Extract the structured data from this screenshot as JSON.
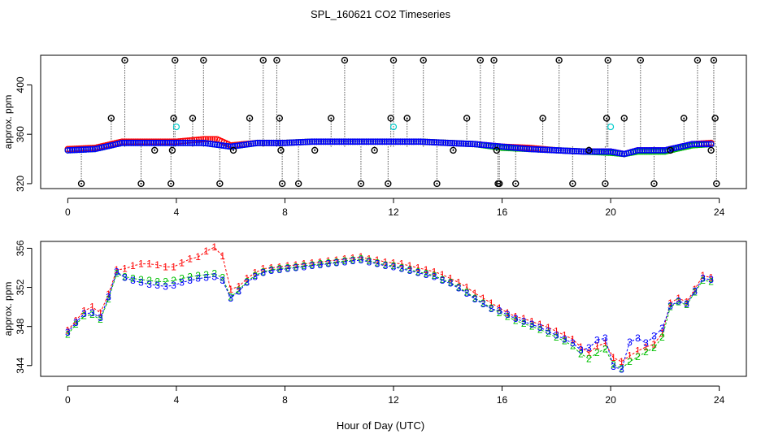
{
  "title": "SPL_160621  CO2 Timeseries",
  "xlabel": "Hour of Day (UTC)",
  "colors": {
    "ref": "#000000",
    "series1": "#ff0000",
    "series2": "#00c000",
    "series3": "#0000ff",
    "flag": "#00cccc"
  },
  "chart_data": [
    {
      "type": "scatter",
      "panel": "top",
      "ylabel": "approx. ppm",
      "xlim": [
        -1,
        25
      ],
      "ylim": [
        316,
        424
      ],
      "xticks": [
        0,
        4,
        8,
        12,
        16,
        20,
        24
      ],
      "yticks": [
        320,
        360,
        400
      ],
      "series": [
        {
          "key": "series1",
          "marker": "circle",
          "x": [
            0,
            1,
            2,
            3,
            4,
            5,
            5.5,
            6,
            7,
            8,
            9,
            10,
            11,
            12,
            13,
            14,
            15,
            16,
            17,
            18,
            19,
            20,
            20.5,
            21,
            22,
            23,
            23.7
          ],
          "y": [
            348,
            349,
            354,
            354,
            354,
            356,
            356,
            351,
            353,
            353,
            354,
            354,
            354,
            354,
            354,
            353,
            352,
            350,
            349,
            347,
            346,
            346,
            344,
            347,
            347,
            352,
            353
          ]
        },
        {
          "key": "series2",
          "marker": "circle",
          "x": [
            0,
            1,
            2,
            3,
            4,
            5,
            6,
            7,
            8,
            9,
            10,
            11,
            12,
            13,
            14,
            15,
            16,
            17,
            18,
            19,
            20,
            20.5,
            21,
            22,
            23,
            23.7
          ],
          "y": [
            347,
            348,
            353,
            353,
            353,
            353,
            350,
            353,
            353,
            354,
            354,
            354,
            354,
            354,
            353,
            352,
            349,
            348,
            347,
            346,
            345,
            344,
            346,
            346,
            351,
            352
          ]
        },
        {
          "key": "series3",
          "marker": "circle",
          "x": [
            0,
            1,
            2,
            3,
            4,
            5,
            6,
            7,
            8,
            9,
            10,
            11,
            12,
            13,
            14,
            15,
            16,
            17,
            18,
            19,
            20,
            20.5,
            21,
            22,
            23,
            23.7
          ],
          "y": [
            347,
            348,
            353,
            353,
            353,
            353,
            350,
            353,
            353,
            354,
            354,
            354,
            354,
            354,
            353,
            352,
            350,
            348,
            347,
            346,
            346,
            344,
            347,
            347,
            352,
            352
          ]
        },
        {
          "key": "flag",
          "marker": "circle",
          "x": [
            4,
            12,
            20
          ],
          "y": [
            366,
            366,
            366
          ]
        },
        {
          "key": "ref",
          "marker": "circle-dot",
          "x": [
            0.5,
            1.6,
            2.1,
            2.7,
            3.2,
            3.8,
            3.85,
            3.9,
            3.95,
            4.6,
            5.0,
            5.6,
            6.1,
            6.7,
            7.2,
            7.7,
            7.8,
            7.85,
            7.9,
            8.5,
            9.1,
            9.7,
            10.2,
            10.8,
            11.3,
            11.8,
            11.9,
            12.0,
            12.5,
            13.1,
            13.6,
            14.2,
            14.7,
            15.2,
            15.7,
            15.8,
            15.85,
            15.9,
            16.5,
            17.5,
            18.1,
            18.6,
            19.2,
            19.8,
            19.85,
            19.9,
            20.5,
            21.1,
            21.6,
            22.2,
            22.7,
            23.2,
            23.7,
            23.8,
            23.85,
            23.9
          ],
          "y": [
            320,
            373,
            420,
            320,
            347,
            320,
            347,
            373,
            420,
            373,
            420,
            320,
            347,
            373,
            420,
            420,
            373,
            347,
            320,
            320,
            347,
            373,
            420,
            320,
            347,
            320,
            373,
            420,
            373,
            420,
            320,
            347,
            373,
            420,
            420,
            347,
            320,
            320,
            320,
            373,
            420,
            320,
            347,
            320,
            373,
            420,
            373,
            420,
            320,
            347,
            373,
            420,
            347,
            420,
            373,
            320
          ]
        }
      ]
    },
    {
      "type": "scatter",
      "panel": "bottom",
      "ylabel": "approx. ppm",
      "xlim": [
        -1,
        25
      ],
      "ylim": [
        342.9,
        356.7
      ],
      "xticks": [
        0,
        4,
        8,
        12,
        16,
        20,
        24
      ],
      "yticks": [
        344,
        348,
        352,
        356
      ],
      "series": [
        {
          "key": "series1",
          "marker": "label-1",
          "x": [
            0,
            0.3,
            0.6,
            0.9,
            1.2,
            1.5,
            1.8,
            2.1,
            2.4,
            2.7,
            3.0,
            3.3,
            3.6,
            3.9,
            4.2,
            4.5,
            4.8,
            5.1,
            5.4,
            5.7,
            6.0,
            6.3,
            6.6,
            6.9,
            7.2,
            7.5,
            7.8,
            8.1,
            8.4,
            8.7,
            9.0,
            9.3,
            9.6,
            9.9,
            10.2,
            10.5,
            10.8,
            11.1,
            11.4,
            11.7,
            12.0,
            12.3,
            12.6,
            12.9,
            13.2,
            13.5,
            13.8,
            14.1,
            14.4,
            14.7,
            15.0,
            15.3,
            15.6,
            15.9,
            16.2,
            16.5,
            16.8,
            17.1,
            17.4,
            17.7,
            18.0,
            18.3,
            18.6,
            18.9,
            19.2,
            19.5,
            19.8,
            20.1,
            20.4,
            20.7,
            21.0,
            21.3,
            21.6,
            21.9,
            22.2,
            22.5,
            22.8,
            23.1,
            23.4,
            23.7
          ],
          "y": [
            347.6,
            348.6,
            349.6,
            350.0,
            349.4,
            351.3,
            353.8,
            353.9,
            354.2,
            354.4,
            354.4,
            354.3,
            354.1,
            354.1,
            354.5,
            354.9,
            355.1,
            355.7,
            356.1,
            355.2,
            351.8,
            352.1,
            352.9,
            353.5,
            353.9,
            354.0,
            354.1,
            354.2,
            354.3,
            354.4,
            354.5,
            354.6,
            354.7,
            354.8,
            354.9,
            355.0,
            355.1,
            354.9,
            354.8,
            354.6,
            354.5,
            354.4,
            354.2,
            354.0,
            353.8,
            353.6,
            353.3,
            352.9,
            352.5,
            352.0,
            351.4,
            350.9,
            350.4,
            349.9,
            349.4,
            349.0,
            348.8,
            348.5,
            348.2,
            347.9,
            347.5,
            347.1,
            346.7,
            345.9,
            345.3,
            346.0,
            346.3,
            344.8,
            344.4,
            345.0,
            345.5,
            345.9,
            346.2,
            347.3,
            350.4,
            350.9,
            350.5,
            351.8,
            353.2,
            353.0
          ]
        },
        {
          "key": "series2",
          "marker": "label-2",
          "x": [
            0,
            0.3,
            0.6,
            0.9,
            1.2,
            1.5,
            1.8,
            2.1,
            2.4,
            2.7,
            3.0,
            3.3,
            3.6,
            3.9,
            4.2,
            4.5,
            4.8,
            5.1,
            5.4,
            5.7,
            6.0,
            6.3,
            6.6,
            6.9,
            7.2,
            7.5,
            7.8,
            8.1,
            8.4,
            8.7,
            9.0,
            9.3,
            9.6,
            9.9,
            10.2,
            10.5,
            10.8,
            11.1,
            11.4,
            11.7,
            12.0,
            12.3,
            12.6,
            12.9,
            13.2,
            13.5,
            13.8,
            14.1,
            14.4,
            14.7,
            15.0,
            15.3,
            15.6,
            15.9,
            16.2,
            16.5,
            16.8,
            17.1,
            17.4,
            17.7,
            18.0,
            18.3,
            18.6,
            18.9,
            19.2,
            19.5,
            19.8,
            20.1,
            20.4,
            20.7,
            21.0,
            21.3,
            21.6,
            21.9,
            22.2,
            22.5,
            22.8,
            23.1,
            23.4,
            23.7
          ],
          "y": [
            347.2,
            348.2,
            349.1,
            349.2,
            348.7,
            350.8,
            353.4,
            353.1,
            352.9,
            352.8,
            352.7,
            352.6,
            352.6,
            352.7,
            352.9,
            353.1,
            353.2,
            353.3,
            353.4,
            353.0,
            351.0,
            351.7,
            352.6,
            353.2,
            353.6,
            353.8,
            353.9,
            354.0,
            354.1,
            354.2,
            354.3,
            354.4,
            354.5,
            354.6,
            354.7,
            354.8,
            354.9,
            354.7,
            354.5,
            354.3,
            354.2,
            354.0,
            353.8,
            353.6,
            353.4,
            353.2,
            352.8,
            352.5,
            352.0,
            351.5,
            350.9,
            350.4,
            349.9,
            349.4,
            349.0,
            348.6,
            348.3,
            348.0,
            347.7,
            347.3,
            346.9,
            346.5,
            346.0,
            345.2,
            344.7,
            345.3,
            345.7,
            344.1,
            343.7,
            344.4,
            344.9,
            345.4,
            345.8,
            346.9,
            350.0,
            350.5,
            350.2,
            351.5,
            352.7,
            352.6
          ]
        },
        {
          "key": "series3",
          "marker": "label-3",
          "x": [
            0,
            0.3,
            0.6,
            0.9,
            1.2,
            1.5,
            1.8,
            2.1,
            2.4,
            2.7,
            3.0,
            3.3,
            3.6,
            3.9,
            4.2,
            4.5,
            4.8,
            5.1,
            5.4,
            5.7,
            6.0,
            6.3,
            6.6,
            6.9,
            7.2,
            7.5,
            7.8,
            8.1,
            8.4,
            8.7,
            9.0,
            9.3,
            9.6,
            9.9,
            10.2,
            10.5,
            10.8,
            11.1,
            11.4,
            11.7,
            12.0,
            12.3,
            12.6,
            12.9,
            13.2,
            13.5,
            13.8,
            14.1,
            14.4,
            14.7,
            15.0,
            15.3,
            15.6,
            15.9,
            16.2,
            16.5,
            16.8,
            17.1,
            17.4,
            17.7,
            18.0,
            18.3,
            18.6,
            18.9,
            19.2,
            19.5,
            19.8,
            20.1,
            20.4,
            20.7,
            21.0,
            21.3,
            21.6,
            21.9,
            22.2,
            22.5,
            22.8,
            23.1,
            23.4,
            23.7
          ],
          "y": [
            347.4,
            348.4,
            349.3,
            349.4,
            348.9,
            351.0,
            353.6,
            353.0,
            352.7,
            352.5,
            352.3,
            352.2,
            352.1,
            352.2,
            352.5,
            352.7,
            352.9,
            353.0,
            353.1,
            352.7,
            350.9,
            351.6,
            352.5,
            353.1,
            353.5,
            353.7,
            353.8,
            353.9,
            354.0,
            354.1,
            354.2,
            354.3,
            354.4,
            354.5,
            354.6,
            354.7,
            354.8,
            354.6,
            354.4,
            354.2,
            354.1,
            353.9,
            353.7,
            353.5,
            353.3,
            353.1,
            352.7,
            352.4,
            351.9,
            351.4,
            350.8,
            350.3,
            349.8,
            349.6,
            349.2,
            348.8,
            348.5,
            348.2,
            347.9,
            347.5,
            347.1,
            346.7,
            346.3,
            345.6,
            345.8,
            346.6,
            346.8,
            343.9,
            343.6,
            346.4,
            346.8,
            346.3,
            347.0,
            347.8,
            350.1,
            350.6,
            350.3,
            351.6,
            352.9,
            352.8
          ]
        }
      ]
    }
  ]
}
